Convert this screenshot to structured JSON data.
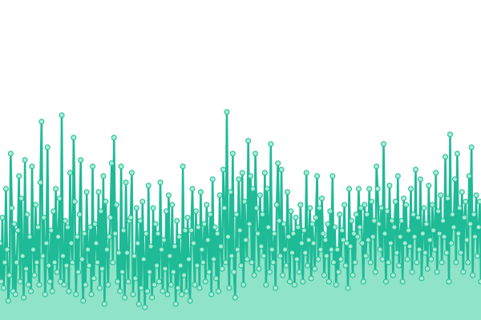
{
  "chart_data": {
    "type": "line",
    "xlabel": "",
    "ylabel": "",
    "title": "",
    "grid": false,
    "legend": "none",
    "ylim": [
      0,
      100
    ],
    "colors": {
      "line": "#1fba96",
      "area": "#8fe3c8",
      "marker_fill": "#a7ecd4"
    },
    "series": [
      {
        "values": [
          24,
          12,
          32,
          10,
          18,
          41,
          22,
          6,
          14,
          52,
          35,
          9,
          30,
          8,
          18,
          28,
          45,
          12,
          38,
          20,
          7,
          50,
          16,
          33,
          11,
          26,
          9,
          48,
          22,
          14,
          36,
          18,
          29,
          11,
          43,
          62,
          20,
          32,
          8,
          24,
          54,
          17,
          12,
          28,
          9,
          34,
          18,
          41,
          15,
          26,
          38,
          12,
          64,
          20,
          11,
          31,
          17,
          29,
          9,
          46,
          24,
          18,
          57,
          37,
          8,
          26,
          15,
          33,
          50,
          19,
          6,
          27,
          11,
          40,
          22,
          17,
          29,
          8,
          48,
          13,
          30,
          24,
          18,
          40,
          10,
          34,
          16,
          45,
          5,
          37,
          22,
          11,
          26,
          32,
          49,
          18,
          57,
          27,
          36,
          12,
          21,
          9,
          48,
          15,
          28,
          7,
          43,
          21,
          12,
          31,
          32,
          46,
          8,
          20,
          13,
          35,
          24,
          5,
          31,
          10,
          37,
          19,
          4,
          27,
          9,
          42,
          15,
          23,
          7,
          35,
          11,
          30,
          17,
          27,
          12,
          43,
          22,
          9,
          25,
          16,
          34,
          8,
          39,
          20,
          11,
          36,
          15,
          23,
          5,
          31,
          10,
          26,
          17,
          8,
          48,
          14,
          28,
          9,
          32,
          19,
          6,
          28,
          41,
          24,
          11,
          34,
          17,
          29,
          10,
          40,
          22,
          18,
          30,
          12,
          36,
          25,
          15,
          33,
          8,
          44,
          19,
          29,
          13,
          27,
          9,
          39,
          23,
          16,
          47,
          35,
          18,
          65,
          26,
          10,
          40,
          20,
          52,
          15,
          7,
          33,
          22,
          44,
          28,
          17,
          46,
          11,
          37,
          25,
          19,
          56,
          30,
          45,
          18,
          41,
          14,
          52,
          35,
          27,
          16,
          39,
          23,
          33,
          20,
          46,
          11,
          41,
          29,
          15,
          55,
          22,
          18,
          27,
          10,
          36,
          49,
          31,
          20,
          47,
          14,
          30,
          22,
          17,
          40,
          26,
          12,
          34,
          21,
          27,
          11,
          32,
          19,
          29,
          15,
          36,
          24,
          12,
          28,
          21,
          46,
          17,
          25,
          35,
          13,
          30,
          24,
          16,
          32,
          45,
          19,
          35,
          22,
          38,
          27,
          14,
          25,
          20,
          30,
          12,
          34,
          22,
          45,
          18,
          29,
          11,
          22,
          15,
          33,
          19,
          28,
          25,
          36,
          17,
          24,
          10,
          41,
          23,
          31,
          14,
          27,
          18,
          33,
          26,
          41,
          29,
          35,
          24,
          12,
          36,
          20,
          33,
          25,
          41,
          18,
          37,
          26,
          31,
          15,
          48,
          41,
          30,
          22,
          35,
          19,
          55,
          27,
          12,
          34,
          18,
          42,
          24,
          31,
          14,
          29,
          37,
          21,
          45,
          17,
          26,
          31,
          12,
          38,
          24,
          36,
          19,
          28,
          23,
          41,
          15,
          33,
          26,
          47,
          18,
          32,
          22,
          44,
          13,
          27,
          35,
          21,
          30,
          16,
          42,
          25,
          19,
          36,
          28,
          22,
          46,
          15,
          34,
          27,
          39,
          18,
          31,
          26,
          51,
          21,
          38,
          12,
          58,
          24,
          33,
          29,
          44,
          18,
          52,
          27,
          35,
          21,
          40,
          15,
          32,
          37,
          25,
          18,
          45,
          30,
          54,
          14,
          33,
          26,
          39,
          20,
          29,
          37,
          12
        ]
      }
    ]
  }
}
